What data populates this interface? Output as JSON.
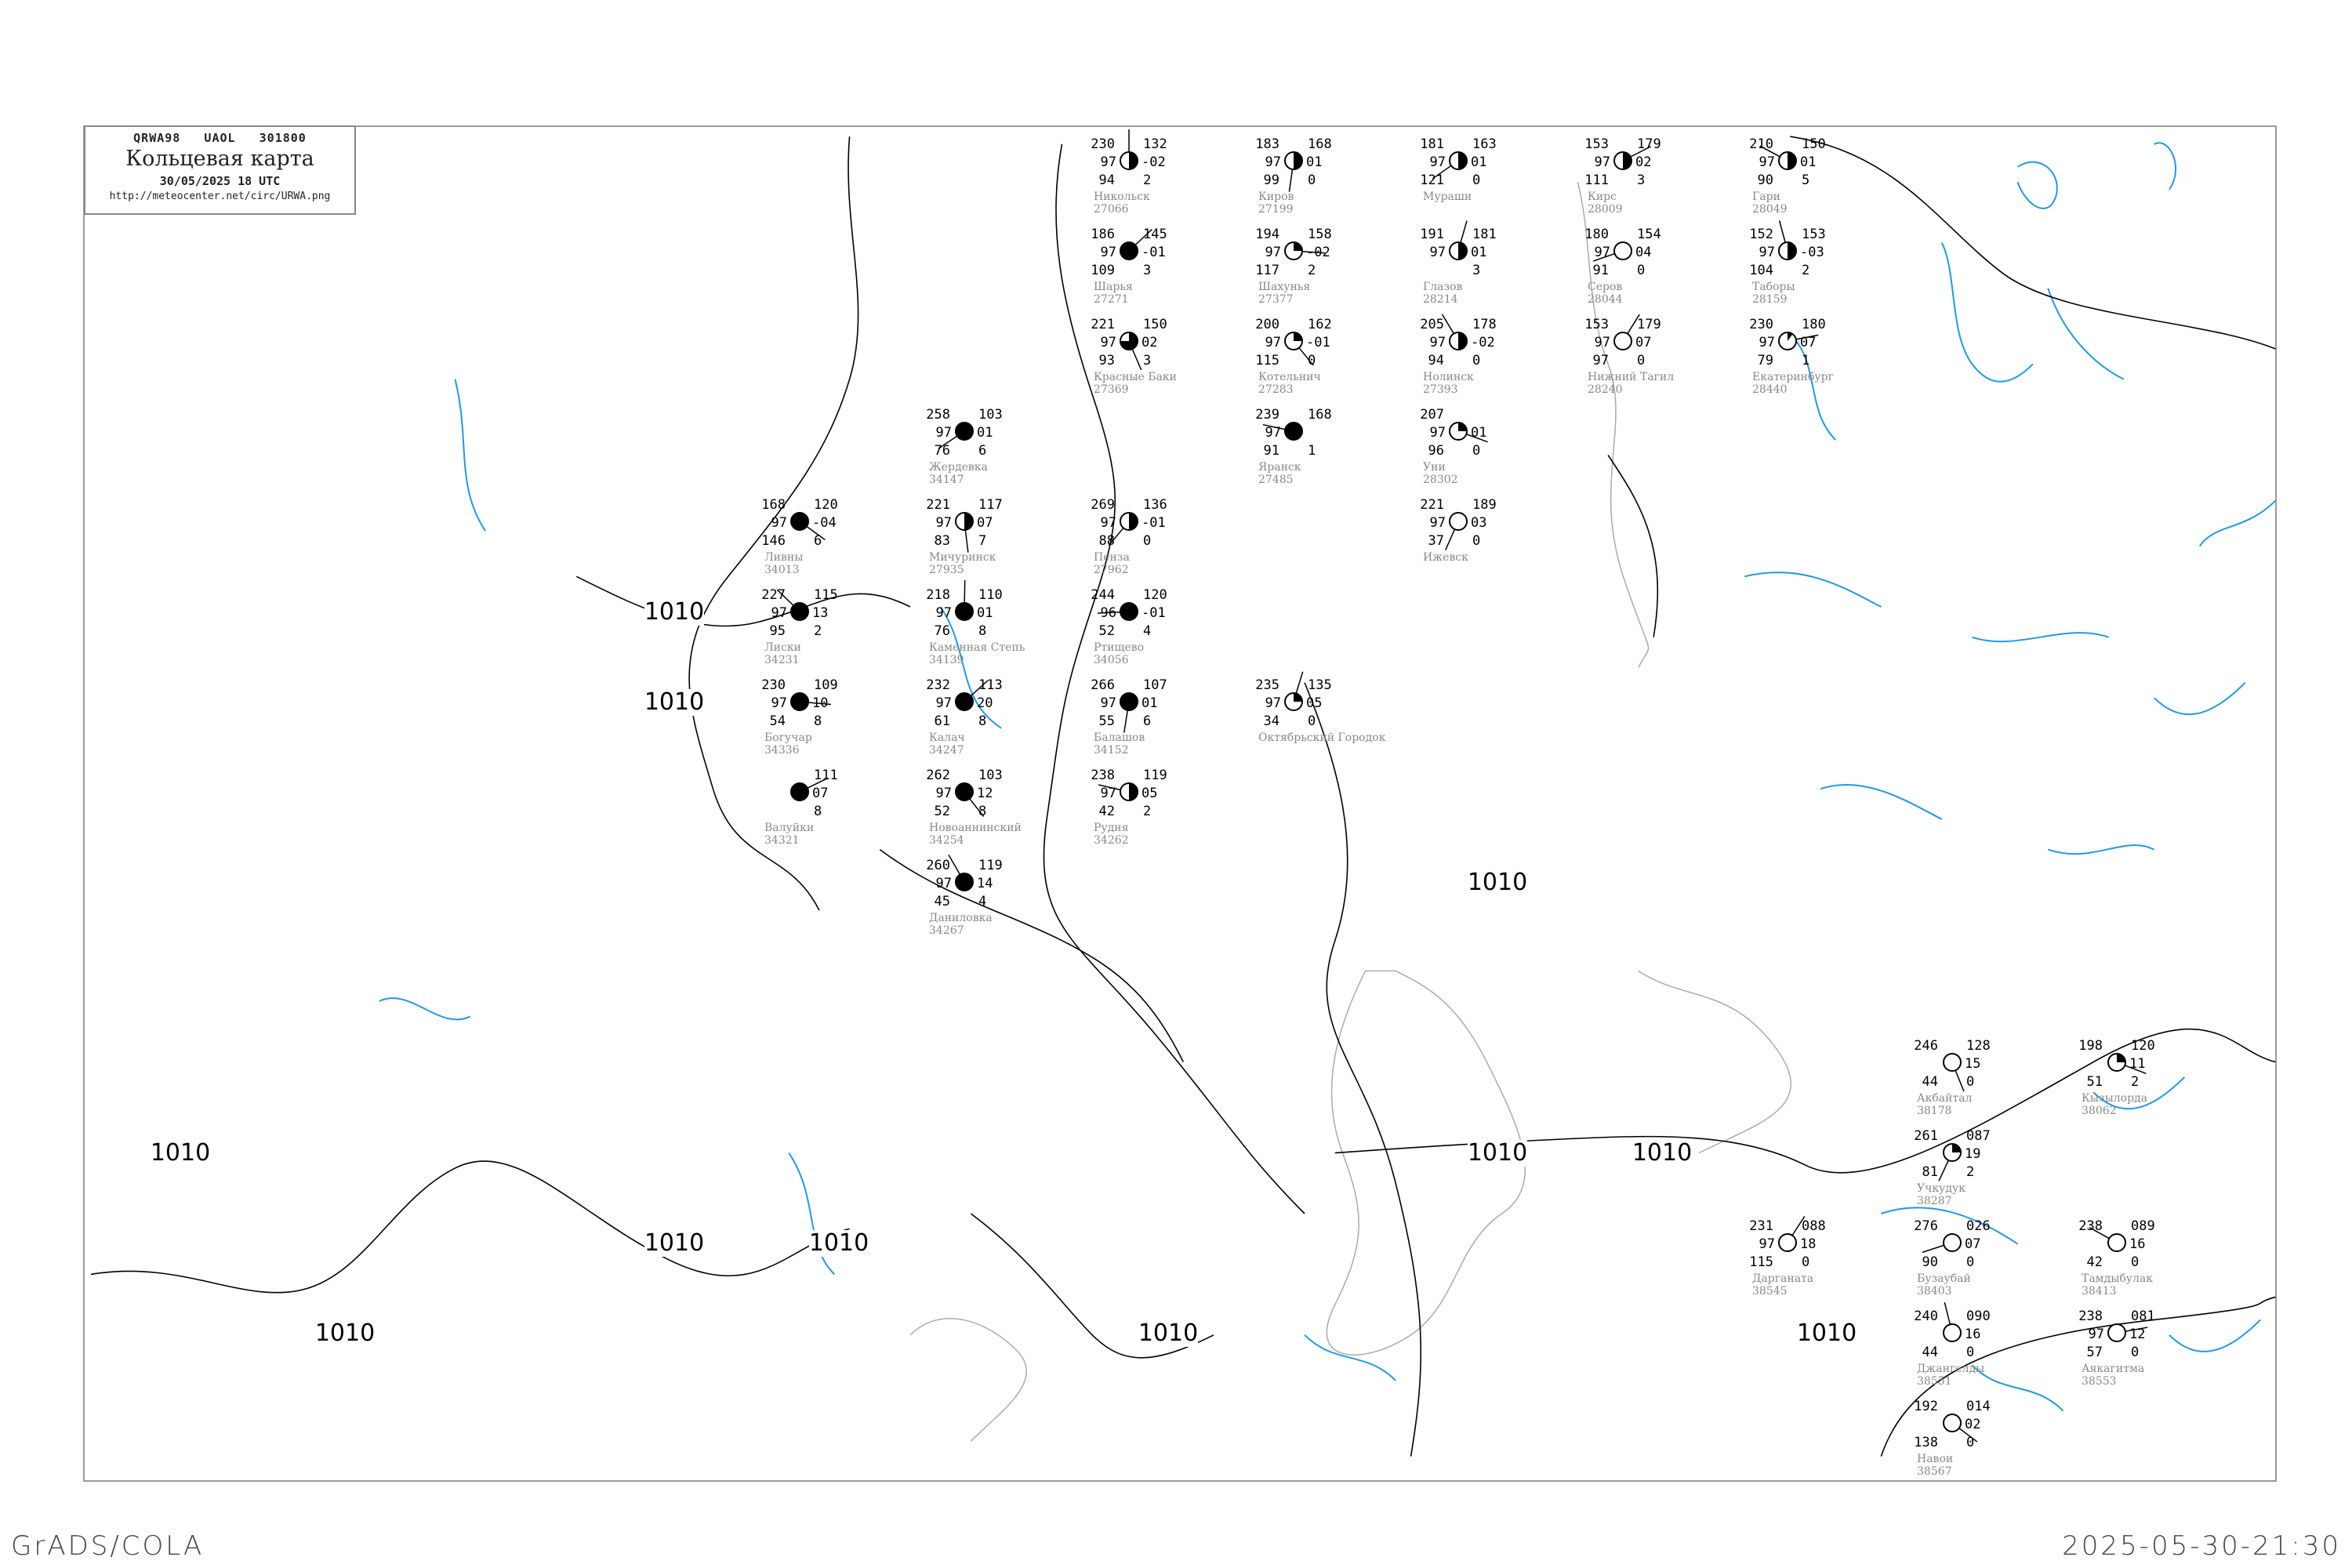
{
  "header": {
    "code": "QRWA98   UAOL   301800",
    "title": "Кольцевая карта",
    "date": "30/05/2025 18 UTC",
    "url": "http://meteocenter.net/circ/URWA.png"
  },
  "footer": {
    "left": "GrADS/COLA",
    "right": "2025-05-30-21:30"
  },
  "colors": {
    "isobar": "#000000",
    "river": "#1e9be6",
    "coast": "#aaaaaa",
    "frame": "#999999",
    "station_name": "#888888",
    "highlight": "#e0157a"
  },
  "isobars": {
    "labels": [
      "1010",
      "1010",
      "1010",
      "1010",
      "1010",
      "1010",
      "1010",
      "1010",
      "1010",
      "1010",
      "1010"
    ]
  },
  "stations": [
    {
      "name": "Никольск",
      "id": "27066",
      "tl": "230",
      "tr": "132",
      "ml": "97",
      "mr": "-02",
      "bl": "94",
      "br": "2",
      "cloud": 0.5
    },
    {
      "name": "Шарья",
      "id": "27271",
      "tl": "186",
      "tr": "145",
      "ml": "97",
      "mr": "-01",
      "bl": "109",
      "br": "3",
      "cloud": 1
    },
    {
      "name": "Шахунья",
      "id": "27377",
      "tl": "194",
      "tr": "158",
      "ml": "97",
      "mr": "-02",
      "bl": "117",
      "br": "2",
      "cloud": 0.25
    },
    {
      "name": "Котельнич",
      "id": "27283",
      "tl": "200",
      "tr": "162",
      "ml": "97",
      "mr": "-01",
      "bl": "115",
      "br": "0",
      "cloud": 0.25
    },
    {
      "name": "Киров",
      "id": "27199",
      "tl": "183",
      "tr": "168",
      "ml": "97",
      "mr": "01",
      "bl": "99",
      "br": "0",
      "cloud": 0.5
    },
    {
      "name": "Мураши",
      "id": "",
      "tl": "181",
      "tr": "163",
      "ml": "97",
      "mr": "01",
      "bl": "121",
      "br": "0",
      "cloud": 0.5
    },
    {
      "name": "Яранск",
      "id": "27485",
      "tl": "239",
      "tr": "168",
      "ml": "97",
      "mr": "",
      "bl": "91",
      "br": "1",
      "cloud": 1
    },
    {
      "name": "Нолинск",
      "id": "27393",
      "tl": "205",
      "tr": "178",
      "ml": "97",
      "mr": "-02",
      "bl": "94",
      "br": "0",
      "cloud": 0.5
    },
    {
      "name": "Глазов",
      "id": "28214",
      "tl": "191",
      "tr": "181",
      "ml": "97",
      "mr": "01",
      "bl": "",
      "br": "3",
      "cloud": 0.5
    },
    {
      "name": "Кирс",
      "id": "28009",
      "tl": "153",
      "tr": "179",
      "ml": "97",
      "mr": "02",
      "bl": "111",
      "br": "3",
      "cloud": 0.5
    },
    {
      "name": "Уни",
      "id": "28302",
      "tl": "207",
      "tr": "",
      "ml": "97",
      "mr": "01",
      "bl": "96",
      "br": "0",
      "cloud": 0.25
    },
    {
      "name": "Красные Баки",
      "id": "27369",
      "tl": "221",
      "tr": "150",
      "ml": "97",
      "mr": "02",
      "bl": "93",
      "br": "3",
      "cloud": 0.75
    },
    {
      "name": "Ижевск",
      "id": "",
      "tl": "221",
      "tr": "189",
      "ml": "97",
      "mr": "03",
      "bl": "37",
      "br": "0",
      "cloud": 0
    },
    {
      "name": "Серов",
      "id": "28044",
      "tl": "180",
      "tr": "154",
      "ml": "97",
      "mr": "04",
      "bl": "91",
      "br": "0",
      "cloud": 0
    },
    {
      "name": "Гари",
      "id": "28049",
      "tl": "210",
      "tr": "150",
      "ml": "97",
      "mr": "01",
      "bl": "90",
      "br": "5",
      "cloud": 0.5
    },
    {
      "name": "Таборы",
      "id": "28159",
      "tl": "152",
      "tr": "153",
      "ml": "97",
      "mr": "-03",
      "bl": "104",
      "br": "2",
      "cloud": 0.5
    },
    {
      "name": "Нижний Тагил",
      "id": "28240",
      "tl": "153",
      "tr": "179",
      "ml": "97",
      "mr": "07",
      "bl": "97",
      "br": "0",
      "cloud": 0
    },
    {
      "name": "Екатеринбург",
      "id": "28440",
      "tl": "230",
      "tr": "180",
      "ml": "97",
      "mr": "07",
      "bl": "79",
      "br": "1",
      "cloud": 0.1
    },
    {
      "name": "Ливны",
      "id": "34013",
      "tl": "168",
      "tr": "120",
      "ml": "97",
      "mr": "-04",
      "bl": "146",
      "br": "6",
      "cloud": 1
    },
    {
      "name": "Мичуринск",
      "id": "27935",
      "tl": "221",
      "tr": "117",
      "ml": "97",
      "mr": "07",
      "bl": "83",
      "br": "7",
      "cloud": 0.5
    },
    {
      "name": "Пенза",
      "id": "27962",
      "tl": "269",
      "tr": "136",
      "ml": "97",
      "mr": "-01",
      "bl": "88",
      "br": "0",
      "cloud": 0.5
    },
    {
      "name": "Ртищево",
      "id": "34056",
      "tl": "244",
      "tr": "120",
      "ml": "96",
      "mr": "-01",
      "bl": "52",
      "br": "4",
      "cloud": 1
    },
    {
      "name": "Лиски",
      "id": "34231",
      "tl": "227",
      "tr": "115",
      "ml": "97",
      "mr": "13",
      "bl": "95",
      "br": "2",
      "cloud": 1
    },
    {
      "name": "Каменная Степь",
      "id": "34139",
      "tl": "218",
      "tr": "110",
      "ml": "97",
      "mr": "01",
      "bl": "76",
      "br": "8",
      "cloud": 1
    },
    {
      "name": "Калач",
      "id": "34247",
      "tl": "232",
      "tr": "113",
      "ml": "97",
      "mr": "20",
      "bl": "61",
      "br": "8",
      "cloud": 1
    },
    {
      "name": "Богучар",
      "id": "34336",
      "tl": "230",
      "tr": "109",
      "ml": "97",
      "mr": "10",
      "bl": "54",
      "br": "8",
      "cloud": 1
    },
    {
      "name": "Новоаннинский",
      "id": "34254",
      "tl": "262",
      "tr": "103",
      "ml": "97",
      "mr": "12",
      "bl": "52",
      "br": "8",
      "cloud": 1
    },
    {
      "name": "Балашов",
      "id": "34152",
      "tl": "266",
      "tr": "107",
      "ml": "97",
      "mr": "01",
      "bl": "55",
      "br": "6",
      "cloud": 1
    },
    {
      "name": "Жердевка",
      "id": "34147",
      "tl": "258",
      "tr": "103",
      "ml": "97",
      "mr": "01",
      "bl": "76",
      "br": "6",
      "cloud": 1
    },
    {
      "name": "Рудня",
      "id": "34262",
      "tl": "238",
      "tr": "119",
      "ml": "97",
      "mr": "05",
      "bl": "42",
      "br": "2",
      "cloud": 0.5
    },
    {
      "name": "Даниловка",
      "id": "34267",
      "tl": "260",
      "tr": "119",
      "ml": "97",
      "mr": "14",
      "bl": "45",
      "br": "4",
      "cloud": 1
    },
    {
      "name": "Октябрьский Городок",
      "id": "",
      "tl": "235",
      "tr": "135",
      "ml": "97",
      "mr": "05",
      "bl": "34",
      "br": "0",
      "cloud": 0.25
    },
    {
      "name": "Валуйки",
      "id": "34321",
      "tl": "",
      "tr": "111",
      "ml": "",
      "mr": "07",
      "bl": "",
      "br": "8",
      "cloud": 1
    },
    {
      "name": "Кызылорда",
      "id": "38062",
      "tl": "198",
      "tr": "120",
      "ml": "",
      "mr": "11",
      "bl": "51",
      "br": "2",
      "cloud": 0.25
    },
    {
      "name": "Акбайтал",
      "id": "38178",
      "tl": "246",
      "tr": "128",
      "ml": "",
      "mr": "15",
      "bl": "44",
      "br": "0",
      "cloud": 0
    },
    {
      "name": "Учкудук",
      "id": "38287",
      "tl": "261",
      "tr": "087",
      "ml": "",
      "mr": "19",
      "bl": "81",
      "br": "2",
      "cloud": 0.25
    },
    {
      "name": "Бузаубай",
      "id": "38403",
      "tl": "276",
      "tr": "026",
      "ml": "",
      "mr": "07",
      "bl": "90",
      "br": "0",
      "cloud": 0
    },
    {
      "name": "Тамдыбулак",
      "id": "38413",
      "tl": "238",
      "tr": "089",
      "ml": "",
      "mr": "16",
      "bl": "42",
      "br": "0",
      "cloud": 0
    },
    {
      "name": "Джангелды",
      "id": "38551",
      "tl": "240",
      "tr": "090",
      "ml": "",
      "mr": "16",
      "bl": "44",
      "br": "0",
      "cloud": 0
    },
    {
      "name": "Дарганата",
      "id": "38545",
      "tl": "231",
      "tr": "088",
      "ml": "97",
      "mr": "18",
      "bl": "115",
      "br": "0",
      "cloud": 0
    },
    {
      "name": "Аякагитма",
      "id": "38553",
      "tl": "238",
      "tr": "081",
      "ml": "97",
      "mr": "12",
      "bl": "57",
      "br": "0",
      "cloud": 0
    },
    {
      "name": "Навои",
      "id": "38567",
      "tl": "192",
      "tr": "014",
      "ml": "",
      "mr": "02",
      "bl": "138",
      "br": "0",
      "cloud": 0
    }
  ]
}
